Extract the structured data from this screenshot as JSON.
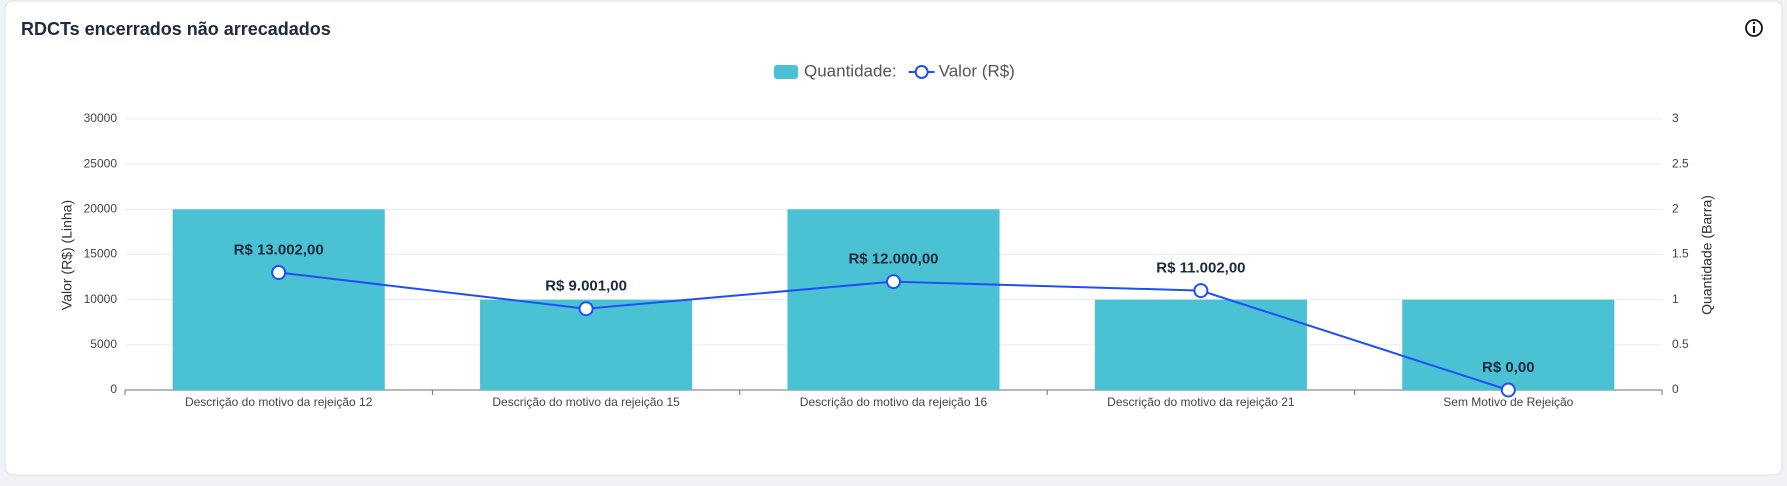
{
  "chart_data": {
    "type": "bar-line",
    "title": "RDCTs encerrados não arrecadados",
    "categories": [
      "Descrição do motivo da rejeição 12",
      "Descrição do motivo da rejeição 15",
      "Descrição do motivo da rejeição 16",
      "Descrição do motivo da rejeição 21",
      "Sem Motivo de Rejeição"
    ],
    "series": [
      {
        "name": "Quantidade:",
        "type": "bar",
        "axis": "y2",
        "color": "#4bc2d4",
        "values": [
          2,
          1,
          2,
          1,
          1
        ]
      },
      {
        "name": "Valor (R$)",
        "type": "line",
        "axis": "y",
        "color": "#1f50f5",
        "values": [
          13002,
          9001,
          12000,
          11002,
          0
        ],
        "value_labels": [
          "R$ 13.002,00",
          "R$ 9.001,00",
          "R$ 12.000,00",
          "R$ 11.002,00",
          "R$ 0,00"
        ]
      }
    ],
    "ylabel": "Valor (R$) (Linha)",
    "y2label": "Quantidade (Barra)",
    "ylim": [
      0,
      30000
    ],
    "yticks": [
      0,
      5000,
      10000,
      15000,
      20000,
      25000,
      30000
    ],
    "y2lim": [
      0,
      3
    ],
    "y2ticks": [
      0,
      0.5,
      1,
      1.5,
      2,
      2.5,
      3
    ],
    "grid": true,
    "legend": "top"
  }
}
